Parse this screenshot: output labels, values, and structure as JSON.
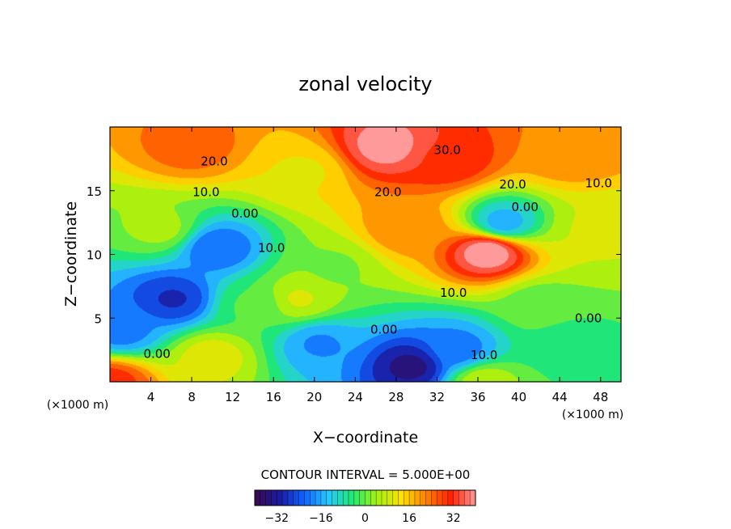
{
  "chart_data": {
    "type": "heatmap",
    "title": "zonal velocity",
    "xlabel": "X−coordinate",
    "ylabel": "Z−coordinate",
    "x_units": "(×1000 m)",
    "z_units": "(×1000 m)",
    "xlim": [
      0,
      50
    ],
    "ylim": [
      0,
      20
    ],
    "x_ticks": [
      "4",
      "8",
      "12",
      "16",
      "20",
      "24",
      "28",
      "32",
      "36",
      "40",
      "44",
      "48"
    ],
    "y_ticks": [
      "5",
      "10",
      "15"
    ],
    "contour_interval_text": "CONTOUR INTERVAL = 5.000E+00",
    "colorbar": {
      "vmin": -40,
      "vmax": 40,
      "ticks": [
        "−32",
        "−16",
        "0",
        "16",
        "32"
      ],
      "colors": [
        "#3a0a4a",
        "#1a1aa0",
        "#1060ff",
        "#28c8ff",
        "#20e870",
        "#a8f010",
        "#ffe000",
        "#ff8000",
        "#ff2000",
        "#ff9a9a"
      ]
    },
    "contour_labels": [
      {
        "text": "30.0",
        "x": 33,
        "z": 18.2
      },
      {
        "text": "20.0",
        "x": 10.2,
        "z": 17.3
      },
      {
        "text": "20.0",
        "x": 39.4,
        "z": 15.5
      },
      {
        "text": "10.0",
        "x": 47.8,
        "z": 15.6
      },
      {
        "text": "10.0",
        "x": 9.4,
        "z": 14.9
      },
      {
        "text": "20.0",
        "x": 27.2,
        "z": 14.9
      },
      {
        "text": "0.00",
        "x": 13.2,
        "z": 13.2
      },
      {
        "text": "0.00",
        "x": 40.6,
        "z": 13.7
      },
      {
        "text": "10.0",
        "x": 15.8,
        "z": 10.5
      },
      {
        "text": "10.0",
        "x": 33.6,
        "z": 7
      },
      {
        "text": "0.00",
        "x": 26.8,
        "z": 4.1
      },
      {
        "text": "0.00",
        "x": 46.8,
        "z": 5
      },
      {
        "text": "0.00",
        "x": 4.6,
        "z": 2.2
      },
      {
        "text": "10.0",
        "x": 36.6,
        "z": 2.1
      }
    ],
    "features": [
      {
        "x": 0,
        "z": 0,
        "u": 30
      },
      {
        "x": 10,
        "z": 2,
        "u": 10
      },
      {
        "x": 19,
        "z": 16.5,
        "u": 12
      },
      {
        "x": 27,
        "z": 18.5,
        "u": 40
      },
      {
        "x": 33,
        "z": 17.5,
        "u": 32
      },
      {
        "x": 8,
        "z": 18.5,
        "u": 25
      },
      {
        "x": 45,
        "z": 18,
        "u": 22
      },
      {
        "x": 29,
        "z": 12,
        "u": 22
      },
      {
        "x": 37,
        "z": 10.2,
        "u": 42
      },
      {
        "x": 38.5,
        "z": 12.5,
        "u": -15
      },
      {
        "x": 10.5,
        "z": 10.5,
        "u": -22
      },
      {
        "x": 6.2,
        "z": 6.5,
        "u": -28
      },
      {
        "x": 1,
        "z": 4,
        "u": -20
      },
      {
        "x": 29.5,
        "z": 1.2,
        "u": -34
      },
      {
        "x": 34,
        "z": 2.5,
        "u": -20
      },
      {
        "x": 20.5,
        "z": 3,
        "u": -18
      },
      {
        "x": 18.5,
        "z": 6.5,
        "u": 8
      },
      {
        "x": 36.5,
        "z": 0,
        "u": 6
      },
      {
        "x": 48,
        "z": 12,
        "u": 8
      },
      {
        "x": 45,
        "z": 3,
        "u": -5
      },
      {
        "x": 22,
        "z": 9,
        "u": 2
      },
      {
        "x": 42,
        "z": 6,
        "u": 0
      },
      {
        "x": 5,
        "z": 12,
        "u": 4
      },
      {
        "x": 14,
        "z": 6,
        "u": -2
      }
    ]
  }
}
